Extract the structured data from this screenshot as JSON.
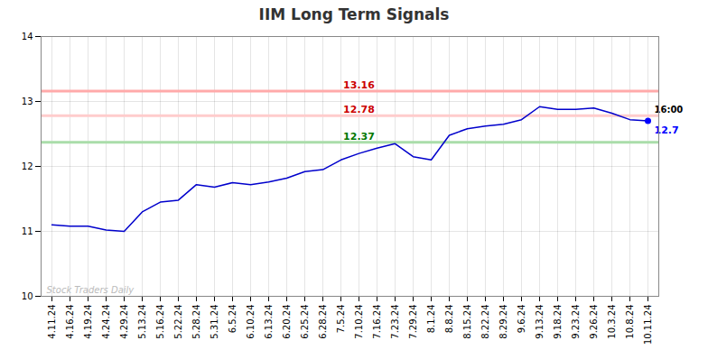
{
  "chart_data": {
    "type": "line",
    "title": "IIM Long Term Signals",
    "categories": [
      "4.11.24",
      "4.16.24",
      "4.19.24",
      "4.24.24",
      "4.29.24",
      "5.13.24",
      "5.16.24",
      "5.22.24",
      "5.28.24",
      "5.31.24",
      "6.5.24",
      "6.10.24",
      "6.13.24",
      "6.20.24",
      "6.25.24",
      "6.28.24",
      "7.5.24",
      "7.10.24",
      "7.16.24",
      "7.23.24",
      "7.29.24",
      "8.1.24",
      "8.8.24",
      "8.15.24",
      "8.22.24",
      "8.29.24",
      "9.6.24",
      "9.13.24",
      "9.18.24",
      "9.23.24",
      "9.26.24",
      "10.3.24",
      "10.8.24",
      "10.11.24"
    ],
    "values": [
      11.1,
      11.08,
      11.08,
      11.02,
      11.0,
      11.3,
      11.45,
      11.48,
      11.72,
      11.68,
      11.75,
      11.72,
      11.76,
      11.82,
      11.92,
      11.95,
      12.1,
      12.2,
      12.28,
      12.35,
      12.15,
      12.1,
      12.48,
      12.58,
      12.62,
      12.65,
      12.72,
      12.92,
      12.88,
      12.88,
      12.9,
      12.82,
      12.72,
      12.7
    ],
    "color": "#0000cc",
    "ylim": [
      10,
      14
    ],
    "yticks": [
      10,
      11,
      12,
      13,
      14
    ],
    "grid": true,
    "hlines": [
      {
        "value": 13.16,
        "label": "13.16",
        "color": "#ffaaaa",
        "label_color": "#cc0000"
      },
      {
        "value": 12.78,
        "label": "12.78",
        "color": "#ffcccc",
        "label_color": "#cc0000"
      },
      {
        "value": 12.37,
        "label": "12.37",
        "color": "#aaddaa",
        "label_color": "#007700"
      }
    ],
    "end_point": {
      "color": "#0000ff",
      "labels": [
        {
          "text": "16:00",
          "color": "#000000"
        },
        {
          "text": "12.7",
          "color": "#0000ff"
        }
      ]
    },
    "watermark": "Stock Traders Daily"
  }
}
